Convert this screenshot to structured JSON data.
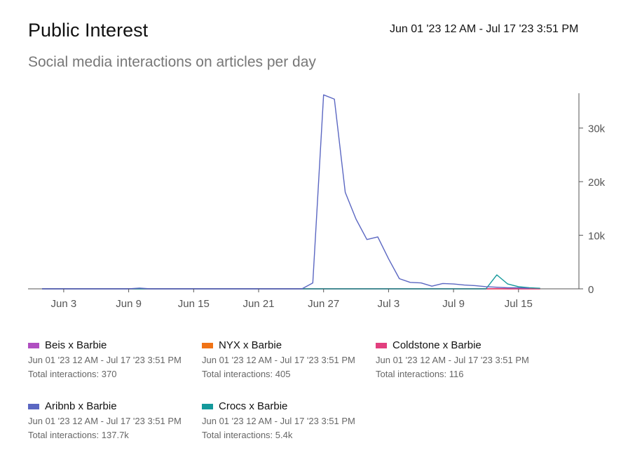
{
  "header": {
    "title": "Public Interest",
    "subtitle": "Social media interactions on articles per day",
    "date_range": "Jun 01 '23 12 AM - Jul 17 '23 3:51 PM"
  },
  "legend": [
    {
      "name": "Beis x Barbie",
      "color": "#b04fc1",
      "range": "Jun 01 '23 12 AM - Jul 17 '23 3:51 PM",
      "total": "Total interactions: 370"
    },
    {
      "name": "NYX x Barbie",
      "color": "#f07316",
      "range": "Jun 01 '23 12 AM - Jul 17 '23 3:51 PM",
      "total": "Total interactions: 405"
    },
    {
      "name": "Coldstone x Barbie",
      "color": "#e23f7e",
      "range": "Jun 01 '23 12 AM - Jul 17 '23 3:51 PM",
      "total": "Total interactions: 116"
    },
    {
      "name": "Aribnb x Barbie",
      "color": "#5b67c2",
      "range": "Jun 01 '23 12 AM - Jul 17 '23 3:51 PM",
      "total": "Total interactions: 137.7k"
    },
    {
      "name": "Crocs x Barbie",
      "color": "#14999b",
      "range": "Jun 01 '23 12 AM - Jul 17 '23 3:51 PM",
      "total": "Total interactions: 5.4k"
    }
  ],
  "chart_data": {
    "type": "line",
    "title": "Public Interest",
    "subtitle": "Social media interactions on articles per day",
    "x_start": "Jun 1",
    "x": [
      "Jun 1",
      "Jun 2",
      "Jun 3",
      "Jun 4",
      "Jun 5",
      "Jun 6",
      "Jun 7",
      "Jun 8",
      "Jun 9",
      "Jun 10",
      "Jun 11",
      "Jun 12",
      "Jun 13",
      "Jun 14",
      "Jun 15",
      "Jun 16",
      "Jun 17",
      "Jun 18",
      "Jun 19",
      "Jun 20",
      "Jun 21",
      "Jun 22",
      "Jun 23",
      "Jun 24",
      "Jun 25",
      "Jun 26",
      "Jun 27",
      "Jun 28",
      "Jun 29",
      "Jun 30",
      "Jul 1",
      "Jul 2",
      "Jul 3",
      "Jul 4",
      "Jul 5",
      "Jul 6",
      "Jul 7",
      "Jul 8",
      "Jul 9",
      "Jul 10",
      "Jul 11",
      "Jul 12",
      "Jul 13",
      "Jul 14",
      "Jul 15",
      "Jul 16",
      "Jul 17"
    ],
    "x_ticks": [
      "Jun 3",
      "Jun 9",
      "Jun 15",
      "Jun 21",
      "Jun 27",
      "Jul 3",
      "Jul 9",
      "Jul 15"
    ],
    "y_ticks": [
      "0",
      "10k",
      "20k",
      "30k"
    ],
    "y_tick_values": [
      0,
      10000,
      20000,
      30000
    ],
    "ylim": [
      0,
      36500
    ],
    "y_axis_side": "right",
    "grid": false,
    "legend_position": "bottom",
    "series": [
      {
        "name": "Aribnb x Barbie",
        "color": "#5b67c2",
        "values": [
          0,
          0,
          0,
          0,
          0,
          0,
          0,
          0,
          0,
          150,
          0,
          0,
          0,
          0,
          0,
          0,
          0,
          0,
          0,
          0,
          0,
          0,
          0,
          0,
          0,
          1100,
          36200,
          35400,
          18000,
          13000,
          9200,
          9700,
          5600,
          1900,
          1200,
          1100,
          500,
          1000,
          900,
          700,
          600,
          400,
          300,
          200,
          200,
          100,
          null
        ]
      },
      {
        "name": "Crocs x Barbie",
        "color": "#14999b",
        "values": [
          0,
          0,
          0,
          0,
          0,
          0,
          0,
          0,
          0,
          0,
          0,
          0,
          0,
          0,
          0,
          0,
          0,
          0,
          0,
          0,
          0,
          0,
          0,
          0,
          0,
          0,
          0,
          0,
          0,
          0,
          0,
          0,
          0,
          0,
          0,
          0,
          0,
          0,
          0,
          0,
          0,
          0,
          2600,
          900,
          400,
          200,
          100
        ]
      },
      {
        "name": "Coldstone x Barbie",
        "color": "#e23f7e",
        "values": [
          0,
          0,
          0,
          0,
          0,
          0,
          0,
          0,
          0,
          0,
          0,
          0,
          0,
          0,
          0,
          0,
          0,
          0,
          0,
          0,
          0,
          0,
          0,
          0,
          0,
          0,
          0,
          0,
          0,
          0,
          0,
          0,
          0,
          0,
          0,
          0,
          0,
          0,
          0,
          0,
          0,
          0,
          50,
          0,
          0,
          0,
          0
        ]
      },
      {
        "name": "NYX x Barbie",
        "color": "#f07316",
        "values": [
          0,
          0,
          0,
          0,
          0,
          0,
          0,
          0,
          0,
          0,
          0,
          0,
          0,
          0,
          0,
          0,
          0,
          0,
          0,
          0,
          0,
          0,
          0,
          0,
          0,
          0,
          0,
          0,
          0,
          0,
          0,
          0,
          0,
          0,
          0,
          0,
          0,
          0,
          0,
          0,
          0,
          0,
          0,
          0,
          0,
          0,
          0
        ]
      },
      {
        "name": "Beis x Barbie",
        "color": "#b04fc1",
        "values": [
          0,
          0,
          0,
          0,
          0,
          0,
          0,
          0,
          0,
          0,
          0,
          0,
          0,
          0,
          0,
          0,
          0,
          0,
          0,
          0,
          0,
          0,
          0,
          0,
          0,
          0,
          0,
          0,
          0,
          0,
          0,
          0,
          0,
          0,
          0,
          0,
          0,
          0,
          0,
          0,
          0,
          0,
          0,
          0,
          0,
          0,
          0
        ]
      }
    ]
  }
}
